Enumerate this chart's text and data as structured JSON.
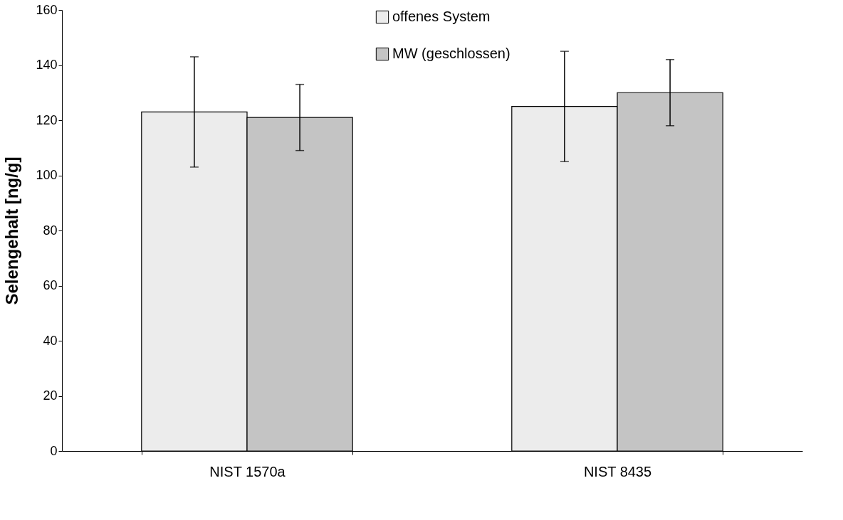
{
  "chart_data": {
    "type": "bar",
    "ylabel": "Selengehalt [ng/g]",
    "categories": [
      "NIST 1570a",
      "NIST 8435"
    ],
    "series": [
      {
        "name": "offenes System",
        "color": "#ececec",
        "values": [
          123,
          125
        ],
        "errors": [
          20,
          20
        ]
      },
      {
        "name": "MW (geschlossen)",
        "color": "#c4c4c4",
        "values": [
          121,
          130
        ],
        "errors": [
          12,
          12
        ]
      }
    ],
    "ylim": [
      0,
      160
    ],
    "yticks": [
      0,
      20,
      40,
      60,
      80,
      100,
      120,
      140,
      160
    ],
    "grid": false,
    "legend": "top"
  }
}
